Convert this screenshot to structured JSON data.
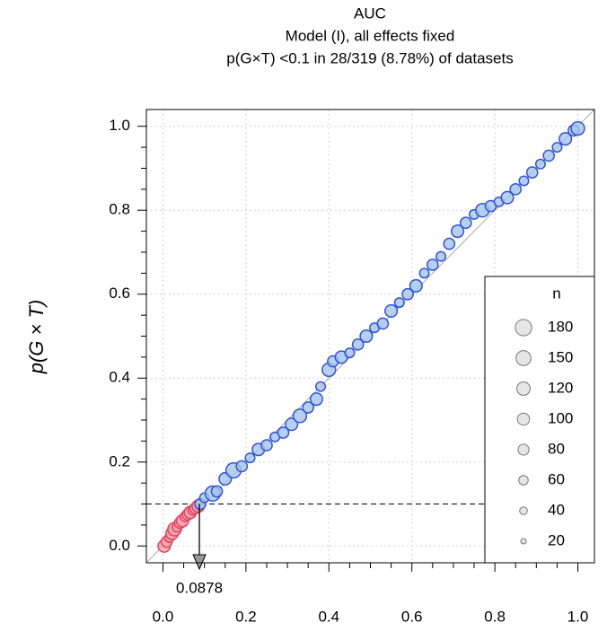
{
  "chart_data": {
    "type": "scatter",
    "title": "AUC",
    "subtitle": "Model (I), all effects fixed",
    "subtitle2": "p(G×T) <0.1 in 28/319 (8.78%) of datasets",
    "y_label": "p(G × T)",
    "xlim": [
      -0.04,
      1.04
    ],
    "ylim": [
      -0.04,
      1.04
    ],
    "xticks": [
      {
        "value": 0,
        "label": "0.0"
      },
      0.2,
      0.4,
      0.6,
      0.8,
      {
        "value": 1,
        "label": "1.0"
      }
    ],
    "yticks": [
      {
        "value": 0,
        "label": "0.0"
      },
      0.2,
      0.4,
      0.6,
      0.8,
      {
        "value": 1,
        "label": "1.0"
      }
    ],
    "xminorticks": [
      0.05,
      0.1,
      0.15,
      0.25,
      0.3,
      0.35,
      0.45,
      0.5,
      0.55,
      0.65,
      0.7,
      0.75,
      0.85,
      0.9,
      0.95
    ],
    "yminorticks": [
      0.05,
      0.1,
      0.15,
      0.25,
      0.3,
      0.35,
      0.45,
      0.5,
      0.55,
      0.65,
      0.7,
      0.75,
      0.85,
      0.9,
      0.95
    ],
    "grid": true,
    "reference_line": true,
    "threshold": 0.1,
    "cutoff": 0.0878,
    "size_legend": {
      "title": "n",
      "values": [
        180,
        150,
        120,
        100,
        80,
        60,
        40,
        20
      ]
    },
    "series": [
      {
        "color": "#e0435a",
        "fill": "#f5a3b1",
        "x": [
          0.003,
          0.009,
          0.016,
          0.022,
          0.028,
          0.034,
          0.041,
          0.047,
          0.053,
          0.06,
          0.066,
          0.072,
          0.078,
          0.085
        ],
        "y": [
          0.0,
          0.01,
          0.02,
          0.03,
          0.04,
          0.045,
          0.055,
          0.06,
          0.07,
          0.075,
          0.08,
          0.085,
          0.09,
          0.095
        ],
        "n": [
          100,
          80,
          60,
          100,
          120,
          60,
          80,
          100,
          60,
          80,
          100,
          60,
          80,
          100
        ]
      },
      {
        "color": "#3353d6",
        "fill": "#a3c5ea",
        "x": [
          0.09,
          0.1,
          0.12,
          0.13,
          0.15,
          0.17,
          0.19,
          0.21,
          0.23,
          0.25,
          0.27,
          0.29,
          0.31,
          0.33,
          0.35,
          0.37,
          0.38,
          0.4,
          0.41,
          0.43,
          0.45,
          0.47,
          0.49,
          0.51,
          0.53,
          0.55,
          0.57,
          0.59,
          0.61,
          0.63,
          0.65,
          0.67,
          0.69,
          0.71,
          0.73,
          0.75,
          0.77,
          0.79,
          0.81,
          0.83,
          0.85,
          0.87,
          0.89,
          0.91,
          0.93,
          0.95,
          0.97,
          0.99,
          1.0
        ],
        "y": [
          0.1,
          0.115,
          0.125,
          0.13,
          0.16,
          0.18,
          0.19,
          0.21,
          0.23,
          0.24,
          0.26,
          0.27,
          0.29,
          0.31,
          0.33,
          0.35,
          0.38,
          0.42,
          0.44,
          0.45,
          0.46,
          0.48,
          0.5,
          0.52,
          0.53,
          0.56,
          0.58,
          0.6,
          0.62,
          0.65,
          0.67,
          0.69,
          0.72,
          0.75,
          0.77,
          0.79,
          0.8,
          0.81,
          0.82,
          0.83,
          0.85,
          0.87,
          0.89,
          0.91,
          0.93,
          0.95,
          0.97,
          0.99,
          0.995
        ],
        "n": [
          80,
          60,
          150,
          80,
          100,
          150,
          80,
          60,
          100,
          80,
          60,
          80,
          100,
          120,
          80,
          100,
          60,
          120,
          80,
          100,
          60,
          80,
          100,
          60,
          80,
          100,
          60,
          80,
          100,
          60,
          80,
          60,
          80,
          100,
          80,
          60,
          120,
          80,
          60,
          100,
          80,
          60,
          80,
          60,
          80,
          60,
          100,
          80,
          120
        ]
      }
    ]
  }
}
